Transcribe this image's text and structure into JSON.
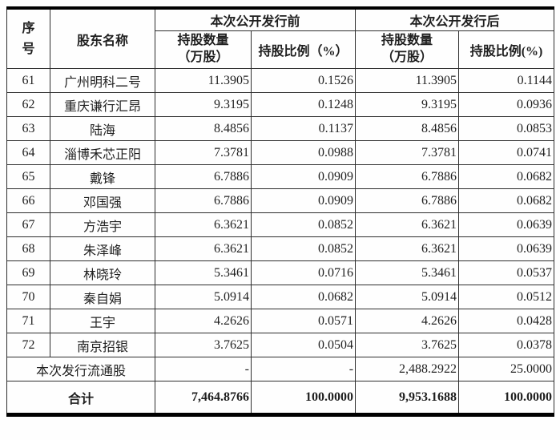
{
  "table": {
    "headers": {
      "seq": "序号",
      "shareholder": "股东名称",
      "before_group": "本次公开发行前",
      "after_group": "本次公开发行后",
      "qty": "持股数量\n（万股）",
      "pct_before": "持股比例（%）",
      "pct_after": "持股比例(%)"
    },
    "rows": [
      {
        "no": "61",
        "name": "广州明科二号",
        "qty_before": "11.3905",
        "pct_before": "0.1526",
        "qty_after": "11.3905",
        "pct_after": "0.1144"
      },
      {
        "no": "62",
        "name": "重庆谦行汇昂",
        "qty_before": "9.3195",
        "pct_before": "0.1248",
        "qty_after": "9.3195",
        "pct_after": "0.0936"
      },
      {
        "no": "63",
        "name": "陆海",
        "qty_before": "8.4856",
        "pct_before": "0.1137",
        "qty_after": "8.4856",
        "pct_after": "0.0853"
      },
      {
        "no": "64",
        "name": "淄博禾芯正阳",
        "qty_before": "7.3781",
        "pct_before": "0.0988",
        "qty_after": "7.3781",
        "pct_after": "0.0741"
      },
      {
        "no": "65",
        "name": "戴锋",
        "qty_before": "6.7886",
        "pct_before": "0.0909",
        "qty_after": "6.7886",
        "pct_after": "0.0682"
      },
      {
        "no": "66",
        "name": "邓国强",
        "qty_before": "6.7886",
        "pct_before": "0.0909",
        "qty_after": "6.7886",
        "pct_after": "0.0682"
      },
      {
        "no": "67",
        "name": "方浩宇",
        "qty_before": "6.3621",
        "pct_before": "0.0852",
        "qty_after": "6.3621",
        "pct_after": "0.0639"
      },
      {
        "no": "68",
        "name": "朱泽峰",
        "qty_before": "6.3621",
        "pct_before": "0.0852",
        "qty_after": "6.3621",
        "pct_after": "0.0639"
      },
      {
        "no": "69",
        "name": "林晓玲",
        "qty_before": "5.3461",
        "pct_before": "0.0716",
        "qty_after": "5.3461",
        "pct_after": "0.0537"
      },
      {
        "no": "70",
        "name": "秦自娟",
        "qty_before": "5.0914",
        "pct_before": "0.0682",
        "qty_after": "5.0914",
        "pct_after": "0.0512"
      },
      {
        "no": "71",
        "name": "王宇",
        "qty_before": "4.2626",
        "pct_before": "0.0571",
        "qty_after": "4.2626",
        "pct_after": "0.0428"
      },
      {
        "no": "72",
        "name": "南京招银",
        "qty_before": "3.7625",
        "pct_before": "0.0504",
        "qty_after": "3.7625",
        "pct_after": "0.0378"
      }
    ],
    "special_rows": [
      {
        "label": "本次发行流通股",
        "qty_before": "-",
        "pct_before": "-",
        "qty_after": "2,488.2922",
        "pct_after": "25.0000"
      },
      {
        "label": "合计",
        "qty_before": "7,464.8766",
        "pct_before": "100.0000",
        "qty_after": "9,953.1688",
        "pct_after": "100.0000"
      }
    ],
    "colors": {
      "border_inner": "#2e2e2e",
      "border_outer": "#000000",
      "text": "#1f1f1f",
      "background": "#fefefe"
    }
  }
}
